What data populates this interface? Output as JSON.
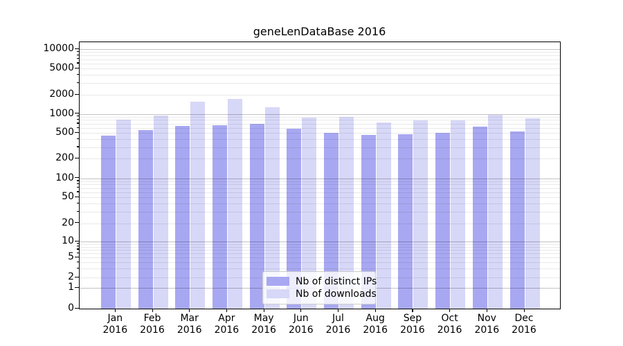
{
  "chart_data": {
    "type": "bar",
    "title": "geneLenDataBase 2016",
    "categories": [
      "Jan",
      "Feb",
      "Mar",
      "Apr",
      "May",
      "Jun",
      "Jul",
      "Aug",
      "Sep",
      "Oct",
      "Nov",
      "Dec"
    ],
    "year": "2016",
    "series": [
      {
        "name": "Nb of distinct IPs",
        "color": "#a8a8f2",
        "values": [
          460,
          560,
          640,
          660,
          690,
          590,
          505,
          470,
          480,
          505,
          630,
          530
        ]
      },
      {
        "name": "Nb of downloads",
        "color": "#d7d7f8",
        "values": [
          810,
          940,
          1560,
          1730,
          1280,
          880,
          895,
          740,
          785,
          785,
          975,
          845
        ]
      }
    ],
    "xlabel": "",
    "ylabel": "",
    "yscale": "symlog",
    "ylim": [
      0,
      10000
    ],
    "y_ticks": [
      0,
      1,
      2,
      5,
      10,
      20,
      50,
      100,
      200,
      500,
      1000,
      2000,
      5000,
      10000
    ],
    "grid": "horizontal major and minor gridlines",
    "legend_position": "lower center inside plot",
    "colors": {
      "major_gridline": "#c2c2c2",
      "minor_gridline": "#e9e9e9",
      "axis": "#000000",
      "background": "#ffffff"
    }
  }
}
